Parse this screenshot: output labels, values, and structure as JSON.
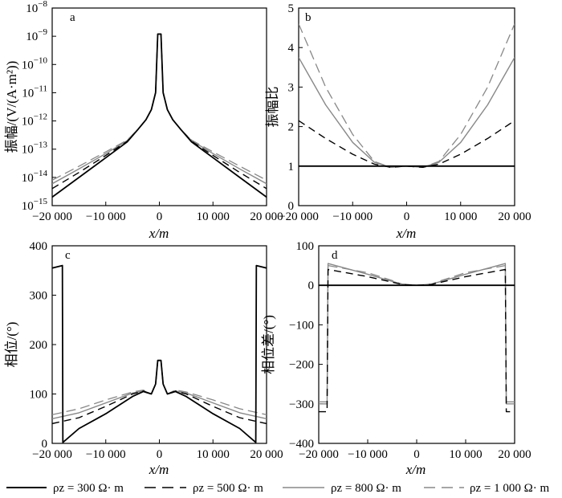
{
  "legend": [
    {
      "label": "ρz = 300 Ω· m",
      "color": "#000000",
      "dash": "solid"
    },
    {
      "label": "ρz = 500 Ω· m",
      "color": "#000000",
      "dash": "dashed"
    },
    {
      "label": "ρz = 800 Ω· m",
      "color": "#888888",
      "dash": "solid"
    },
    {
      "label": "ρz = 1 000 Ω· m",
      "color": "#888888",
      "dash": "dashed"
    }
  ],
  "chart_data": [
    {
      "type": "line",
      "label": "a",
      "title": "",
      "xlabel": "x/m",
      "ylabel": "振幅/(V/(A·m²))",
      "yscale": "log",
      "xlim": [
        -20000,
        20000
      ],
      "ylim": [
        1e-15,
        1e-08
      ],
      "x_ticks": [
        -20000,
        -10000,
        0,
        10000,
        20000
      ],
      "x_tick_labels": [
        "−20 000",
        "−10 000",
        "0",
        "10 000",
        "20 000"
      ],
      "y_tick_labels": [
        "10^-15",
        "10^-14",
        "10^-13",
        "10^-12",
        "10^-11",
        "10^-10",
        "10^-9",
        "10^-8"
      ],
      "series": [
        {
          "name": "ρz = 300 Ω· m",
          "x": [
            -20000,
            -15000,
            -10000,
            -6000,
            -4000,
            -2500,
            -1500,
            -700,
            -300,
            300,
            700,
            1500,
            2500,
            4000,
            6000,
            10000,
            15000,
            20000
          ],
          "values": [
            2e-15,
            1e-14,
            5e-14,
            1.8e-13,
            5e-13,
            1.1e-12,
            2.5e-12,
            1e-11,
            1.2e-09,
            1.2e-09,
            1e-11,
            2.5e-12,
            1.1e-12,
            5e-13,
            1.8e-13,
            5e-14,
            1e-14,
            2e-15
          ]
        },
        {
          "name": "ρz = 500 Ω· m",
          "x": [
            -20000,
            -15000,
            -10000,
            -6000,
            -4000,
            -2500,
            -1500,
            -700,
            -300,
            300,
            700,
            1500,
            2500,
            4000,
            6000,
            10000,
            15000,
            20000
          ],
          "values": [
            4e-15,
            1.5e-14,
            6e-14,
            1.9e-13,
            5e-13,
            1.1e-12,
            2.5e-12,
            1e-11,
            1.2e-09,
            1.2e-09,
            1e-11,
            2.5e-12,
            1.1e-12,
            5e-13,
            1.9e-13,
            6e-14,
            1.5e-14,
            4e-15
          ]
        },
        {
          "name": "ρz = 800 Ω· m",
          "x": [
            -20000,
            -15000,
            -10000,
            -6000,
            -4000,
            -2500,
            -1500,
            -700,
            -300,
            300,
            700,
            1500,
            2500,
            4000,
            6000,
            10000,
            15000,
            20000
          ],
          "values": [
            6e-15,
            2e-14,
            7e-14,
            2e-13,
            5e-13,
            1.1e-12,
            2.5e-12,
            1e-11,
            1.2e-09,
            1.2e-09,
            1e-11,
            2.5e-12,
            1.1e-12,
            5e-13,
            2e-13,
            7e-14,
            2e-14,
            6e-15
          ]
        },
        {
          "name": "ρz = 1 000 Ω· m",
          "x": [
            -20000,
            -15000,
            -10000,
            -6000,
            -4000,
            -2500,
            -1500,
            -700,
            -300,
            300,
            700,
            1500,
            2500,
            4000,
            6000,
            10000,
            15000,
            20000
          ],
          "values": [
            8e-15,
            2.5e-14,
            8e-14,
            2.1e-13,
            5e-13,
            1.1e-12,
            2.5e-12,
            1e-11,
            1.2e-09,
            1.2e-09,
            1e-11,
            2.5e-12,
            1.1e-12,
            5e-13,
            2.1e-13,
            8e-14,
            2.5e-14,
            8e-15
          ]
        }
      ]
    },
    {
      "type": "line",
      "label": "b",
      "title": "",
      "xlabel": "x/m",
      "ylabel": "振幅比",
      "xlim": [
        -20000,
        20000
      ],
      "ylim": [
        0,
        5
      ],
      "x_ticks": [
        -20000,
        -10000,
        0,
        10000,
        20000
      ],
      "x_tick_labels": [
        "−20 000",
        "−10 000",
        "0",
        "10 000",
        "20 000"
      ],
      "y_ticks": [
        0,
        1,
        2,
        3,
        4,
        5
      ],
      "y_tick_labels": [
        "0",
        "1",
        "2",
        "3",
        "4",
        "5"
      ],
      "series": [
        {
          "name": "ρz = 300 Ω· m",
          "x": [
            -20000,
            20000
          ],
          "values": [
            1,
            1
          ]
        },
        {
          "name": "ρz = 500 Ω· m",
          "x": [
            -20000,
            -15000,
            -10000,
            -6000,
            -3000,
            0,
            3000,
            6000,
            10000,
            15000,
            20000
          ],
          "values": [
            2.15,
            1.7,
            1.3,
            1.05,
            0.97,
            1.0,
            0.97,
            1.05,
            1.3,
            1.7,
            2.15
          ]
        },
        {
          "name": "ρz = 800 Ω· m",
          "x": [
            -20000,
            -15000,
            -10000,
            -6000,
            -3000,
            0,
            3000,
            6000,
            10000,
            15000,
            20000
          ],
          "values": [
            3.75,
            2.55,
            1.6,
            1.1,
            0.97,
            1.0,
            0.97,
            1.1,
            1.6,
            2.55,
            3.75
          ]
        },
        {
          "name": "ρz = 1 000 Ω· m",
          "x": [
            -20000,
            -15000,
            -10000,
            -6000,
            -3000,
            0,
            3000,
            6000,
            10000,
            15000,
            20000
          ],
          "values": [
            4.6,
            3.0,
            1.8,
            1.12,
            0.97,
            1.0,
            0.97,
            1.12,
            1.8,
            3.0,
            4.6
          ]
        }
      ]
    },
    {
      "type": "line",
      "label": "c",
      "title": "",
      "xlabel": "x/m",
      "ylabel": "相位/(°)",
      "xlim": [
        -20000,
        20000
      ],
      "ylim": [
        0,
        400
      ],
      "x_ticks": [
        -20000,
        -10000,
        0,
        10000,
        20000
      ],
      "x_tick_labels": [
        "−20 000",
        "−10 000",
        "0",
        "10 000",
        "20 000"
      ],
      "y_ticks": [
        0,
        100,
        200,
        300,
        400
      ],
      "y_tick_labels": [
        "0",
        "100",
        "200",
        "300",
        "400"
      ],
      "series": [
        {
          "name": "ρz = 300 Ω· m",
          "x": [
            -20000,
            -18100,
            -18000,
            -15000,
            -10000,
            -5000,
            -3000,
            -1500,
            -700,
            -300,
            0,
            300,
            700,
            1500,
            3000,
            5000,
            10000,
            15000,
            18000,
            18100,
            20000
          ],
          "values": [
            355,
            360,
            2,
            30,
            60,
            95,
            105,
            100,
            120,
            168,
            168,
            168,
            120,
            100,
            105,
            95,
            60,
            30,
            2,
            360,
            355
          ]
        },
        {
          "name": "ρz = 500 Ω· m",
          "x": [
            -20000,
            -15000,
            -10000,
            -5000,
            -3000,
            -1500,
            -700,
            -300,
            0,
            300,
            700,
            1500,
            3000,
            5000,
            10000,
            15000,
            20000
          ],
          "values": [
            40,
            52,
            75,
            100,
            106,
            100,
            120,
            168,
            168,
            168,
            120,
            100,
            106,
            100,
            75,
            52,
            40
          ]
        },
        {
          "name": "ρz = 800 Ω· m",
          "x": [
            -20000,
            -15000,
            -10000,
            -5000,
            -3000,
            -1500,
            -700,
            -300,
            0,
            300,
            700,
            1500,
            3000,
            5000,
            10000,
            15000,
            20000
          ],
          "values": [
            50,
            62,
            82,
            102,
            106,
            100,
            120,
            168,
            168,
            168,
            120,
            100,
            106,
            102,
            82,
            62,
            50
          ]
        },
        {
          "name": "ρz = 1 000 Ω· m",
          "x": [
            -20000,
            -15000,
            -10000,
            -5000,
            -3000,
            -1500,
            -700,
            -300,
            0,
            300,
            700,
            1500,
            3000,
            5000,
            10000,
            15000,
            20000
          ],
          "values": [
            58,
            70,
            88,
            104,
            108,
            100,
            120,
            168,
            168,
            168,
            120,
            100,
            108,
            104,
            88,
            70,
            58
          ]
        }
      ]
    },
    {
      "type": "line",
      "label": "d",
      "title": "",
      "xlabel": "x/m",
      "ylabel": "相位差/(°)",
      "xlim": [
        -20000,
        20000
      ],
      "ylim": [
        -400,
        100
      ],
      "x_ticks": [
        -20000,
        -10000,
        0,
        10000,
        20000
      ],
      "x_tick_labels": [
        "−20 000",
        "−10 000",
        "0",
        "10 000",
        "20 000"
      ],
      "y_ticks": [
        -400,
        -300,
        -200,
        -100,
        0,
        100
      ],
      "y_tick_labels": [
        "−400",
        "−300",
        "−200",
        "−100",
        "0",
        "100"
      ],
      "series": [
        {
          "name": "ρz = 300 Ω· m",
          "x": [
            -20000,
            20000
          ],
          "values": [
            0,
            0
          ]
        },
        {
          "name": "ρz = 500 Ω· m",
          "x": [
            -20000,
            -18300,
            -18100,
            -10000,
            -5000,
            -3000,
            0,
            3000,
            5000,
            10000,
            18100,
            18300,
            20000
          ],
          "values": [
            -320,
            -320,
            40,
            22,
            8,
            2,
            0,
            2,
            8,
            22,
            40,
            -320,
            -320
          ]
        },
        {
          "name": "ρz = 800 Ω· m",
          "x": [
            -20000,
            -18300,
            -18100,
            -10000,
            -5000,
            -3000,
            0,
            3000,
            5000,
            10000,
            18100,
            18300,
            20000
          ],
          "values": [
            -300,
            -300,
            55,
            28,
            10,
            3,
            0,
            3,
            10,
            28,
            55,
            -300,
            -300
          ]
        },
        {
          "name": "ρz = 1 000 Ω· m",
          "x": [
            -20000,
            -18300,
            -18100,
            -10000,
            -5000,
            -3000,
            0,
            3000,
            5000,
            10000,
            18100,
            18300,
            20000
          ],
          "values": [
            -295,
            -295,
            50,
            32,
            12,
            3,
            0,
            3,
            12,
            32,
            50,
            -295,
            -295
          ]
        }
      ]
    }
  ]
}
